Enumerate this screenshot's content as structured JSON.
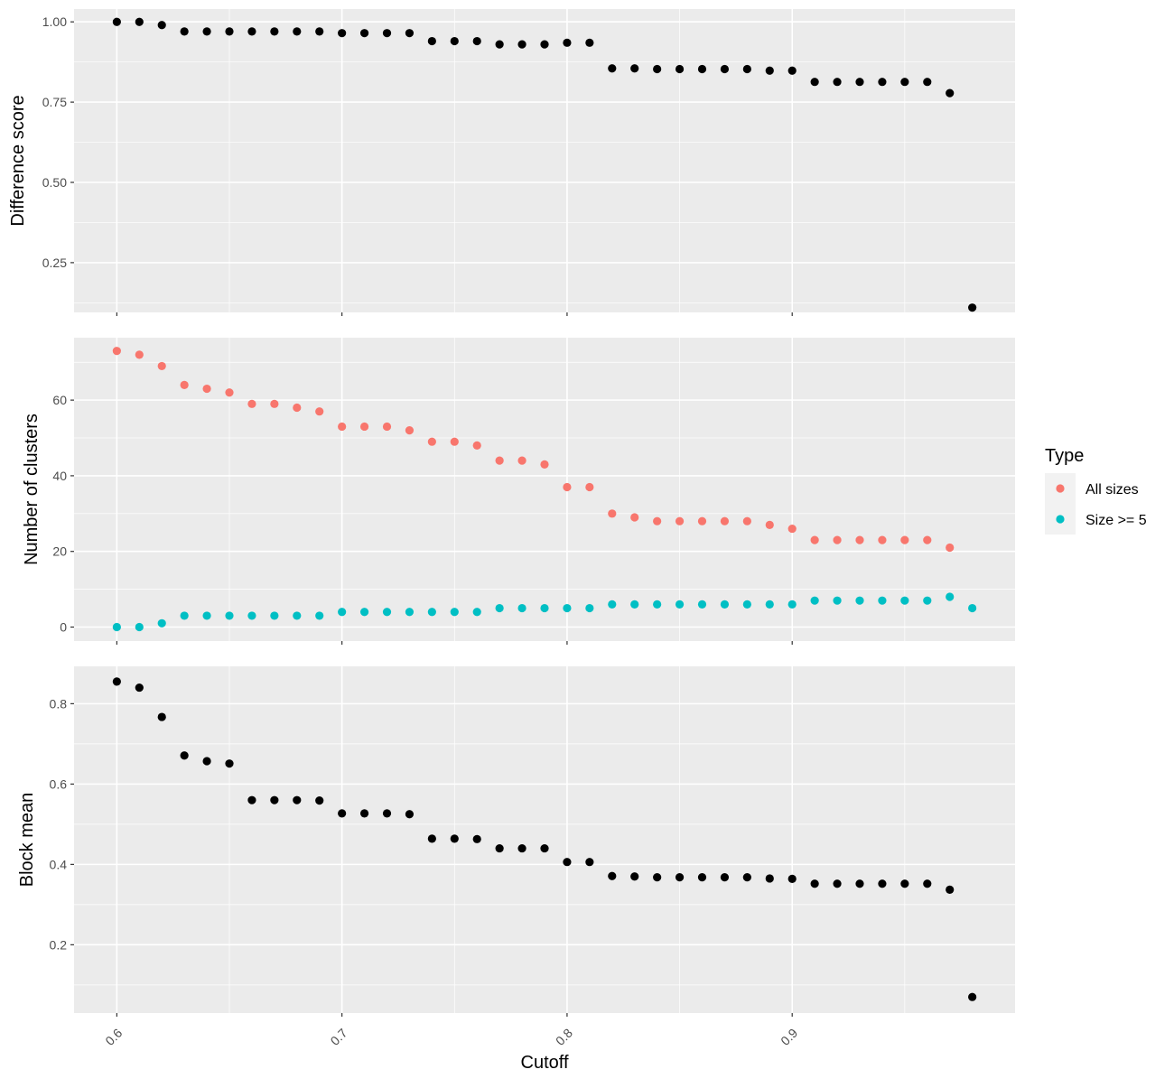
{
  "chart_data": {
    "type": "scatter",
    "x": [
      0.6,
      0.61,
      0.62,
      0.63,
      0.64,
      0.65,
      0.66,
      0.67,
      0.68,
      0.69,
      0.7,
      0.71,
      0.72,
      0.73,
      0.74,
      0.75,
      0.76,
      0.77,
      0.78,
      0.79,
      0.8,
      0.81,
      0.82,
      0.83,
      0.84,
      0.85,
      0.86,
      0.87,
      0.88,
      0.89,
      0.9,
      0.91,
      0.92,
      0.93,
      0.94,
      0.95,
      0.96,
      0.97,
      0.98
    ],
    "xlabel": "Cutoff",
    "xticks": [
      "0.6",
      "0.7",
      "0.8",
      "0.9"
    ],
    "xlim": [
      0.581,
      0.999
    ],
    "grid": true,
    "legend_position": "right",
    "panels": [
      {
        "ylabel": "Difference score",
        "ylim": [
          0.095,
          1.04
        ],
        "yticks": [
          "0.25",
          "0.50",
          "0.75",
          "1.00"
        ],
        "series": [
          {
            "color": "#000000",
            "values": [
              1.0,
              1.0,
              0.99,
              0.97,
              0.97,
              0.97,
              0.97,
              0.97,
              0.97,
              0.97,
              0.965,
              0.965,
              0.965,
              0.965,
              0.94,
              0.94,
              0.94,
              0.93,
              0.93,
              0.93,
              0.935,
              0.935,
              0.855,
              0.855,
              0.853,
              0.853,
              0.853,
              0.853,
              0.853,
              0.848,
              0.848,
              0.813,
              0.813,
              0.813,
              0.813,
              0.813,
              0.813,
              0.778,
              0.11
            ]
          }
        ]
      },
      {
        "ylabel": "Number of clusters",
        "ylim": [
          -3.7,
          76.5
        ],
        "yticks": [
          "0",
          "20",
          "40",
          "60"
        ],
        "legend_title": "Type",
        "series": [
          {
            "name": "All sizes",
            "color": "#F8766D",
            "values": [
              73,
              72,
              69,
              64,
              63,
              62,
              59,
              59,
              58,
              57,
              53,
              53,
              53,
              52,
              49,
              49,
              48,
              44,
              44,
              43,
              37,
              37,
              30,
              29,
              28,
              28,
              28,
              28,
              28,
              27,
              26,
              23,
              23,
              23,
              23,
              23,
              23,
              21,
              null
            ]
          },
          {
            "name": "Size >= 5",
            "color": "#00BFC4",
            "values": [
              0,
              0,
              1,
              3,
              3,
              3,
              3,
              3,
              3,
              3,
              4,
              4,
              4,
              4,
              4,
              4,
              4,
              5,
              5,
              5,
              5,
              5,
              6,
              6,
              6,
              6,
              6,
              6,
              6,
              6,
              6,
              7,
              7,
              7,
              7,
              7,
              7,
              8,
              5
            ]
          }
        ]
      },
      {
        "ylabel": "Block mean",
        "ylim": [
          0.03,
          0.893
        ],
        "yticks": [
          "0.2",
          "0.4",
          "0.6",
          "0.8"
        ],
        "series": [
          {
            "color": "#000000",
            "values": [
              0.855,
              0.84,
              0.767,
              0.671,
              0.657,
              0.651,
              0.56,
              0.56,
              0.56,
              0.559,
              0.527,
              0.527,
              0.527,
              0.525,
              0.464,
              0.464,
              0.463,
              0.44,
              0.44,
              0.44,
              0.406,
              0.406,
              0.371,
              0.37,
              0.368,
              0.368,
              0.368,
              0.368,
              0.368,
              0.365,
              0.364,
              0.352,
              0.352,
              0.352,
              0.352,
              0.352,
              0.352,
              0.337,
              0.07
            ]
          }
        ]
      }
    ]
  }
}
